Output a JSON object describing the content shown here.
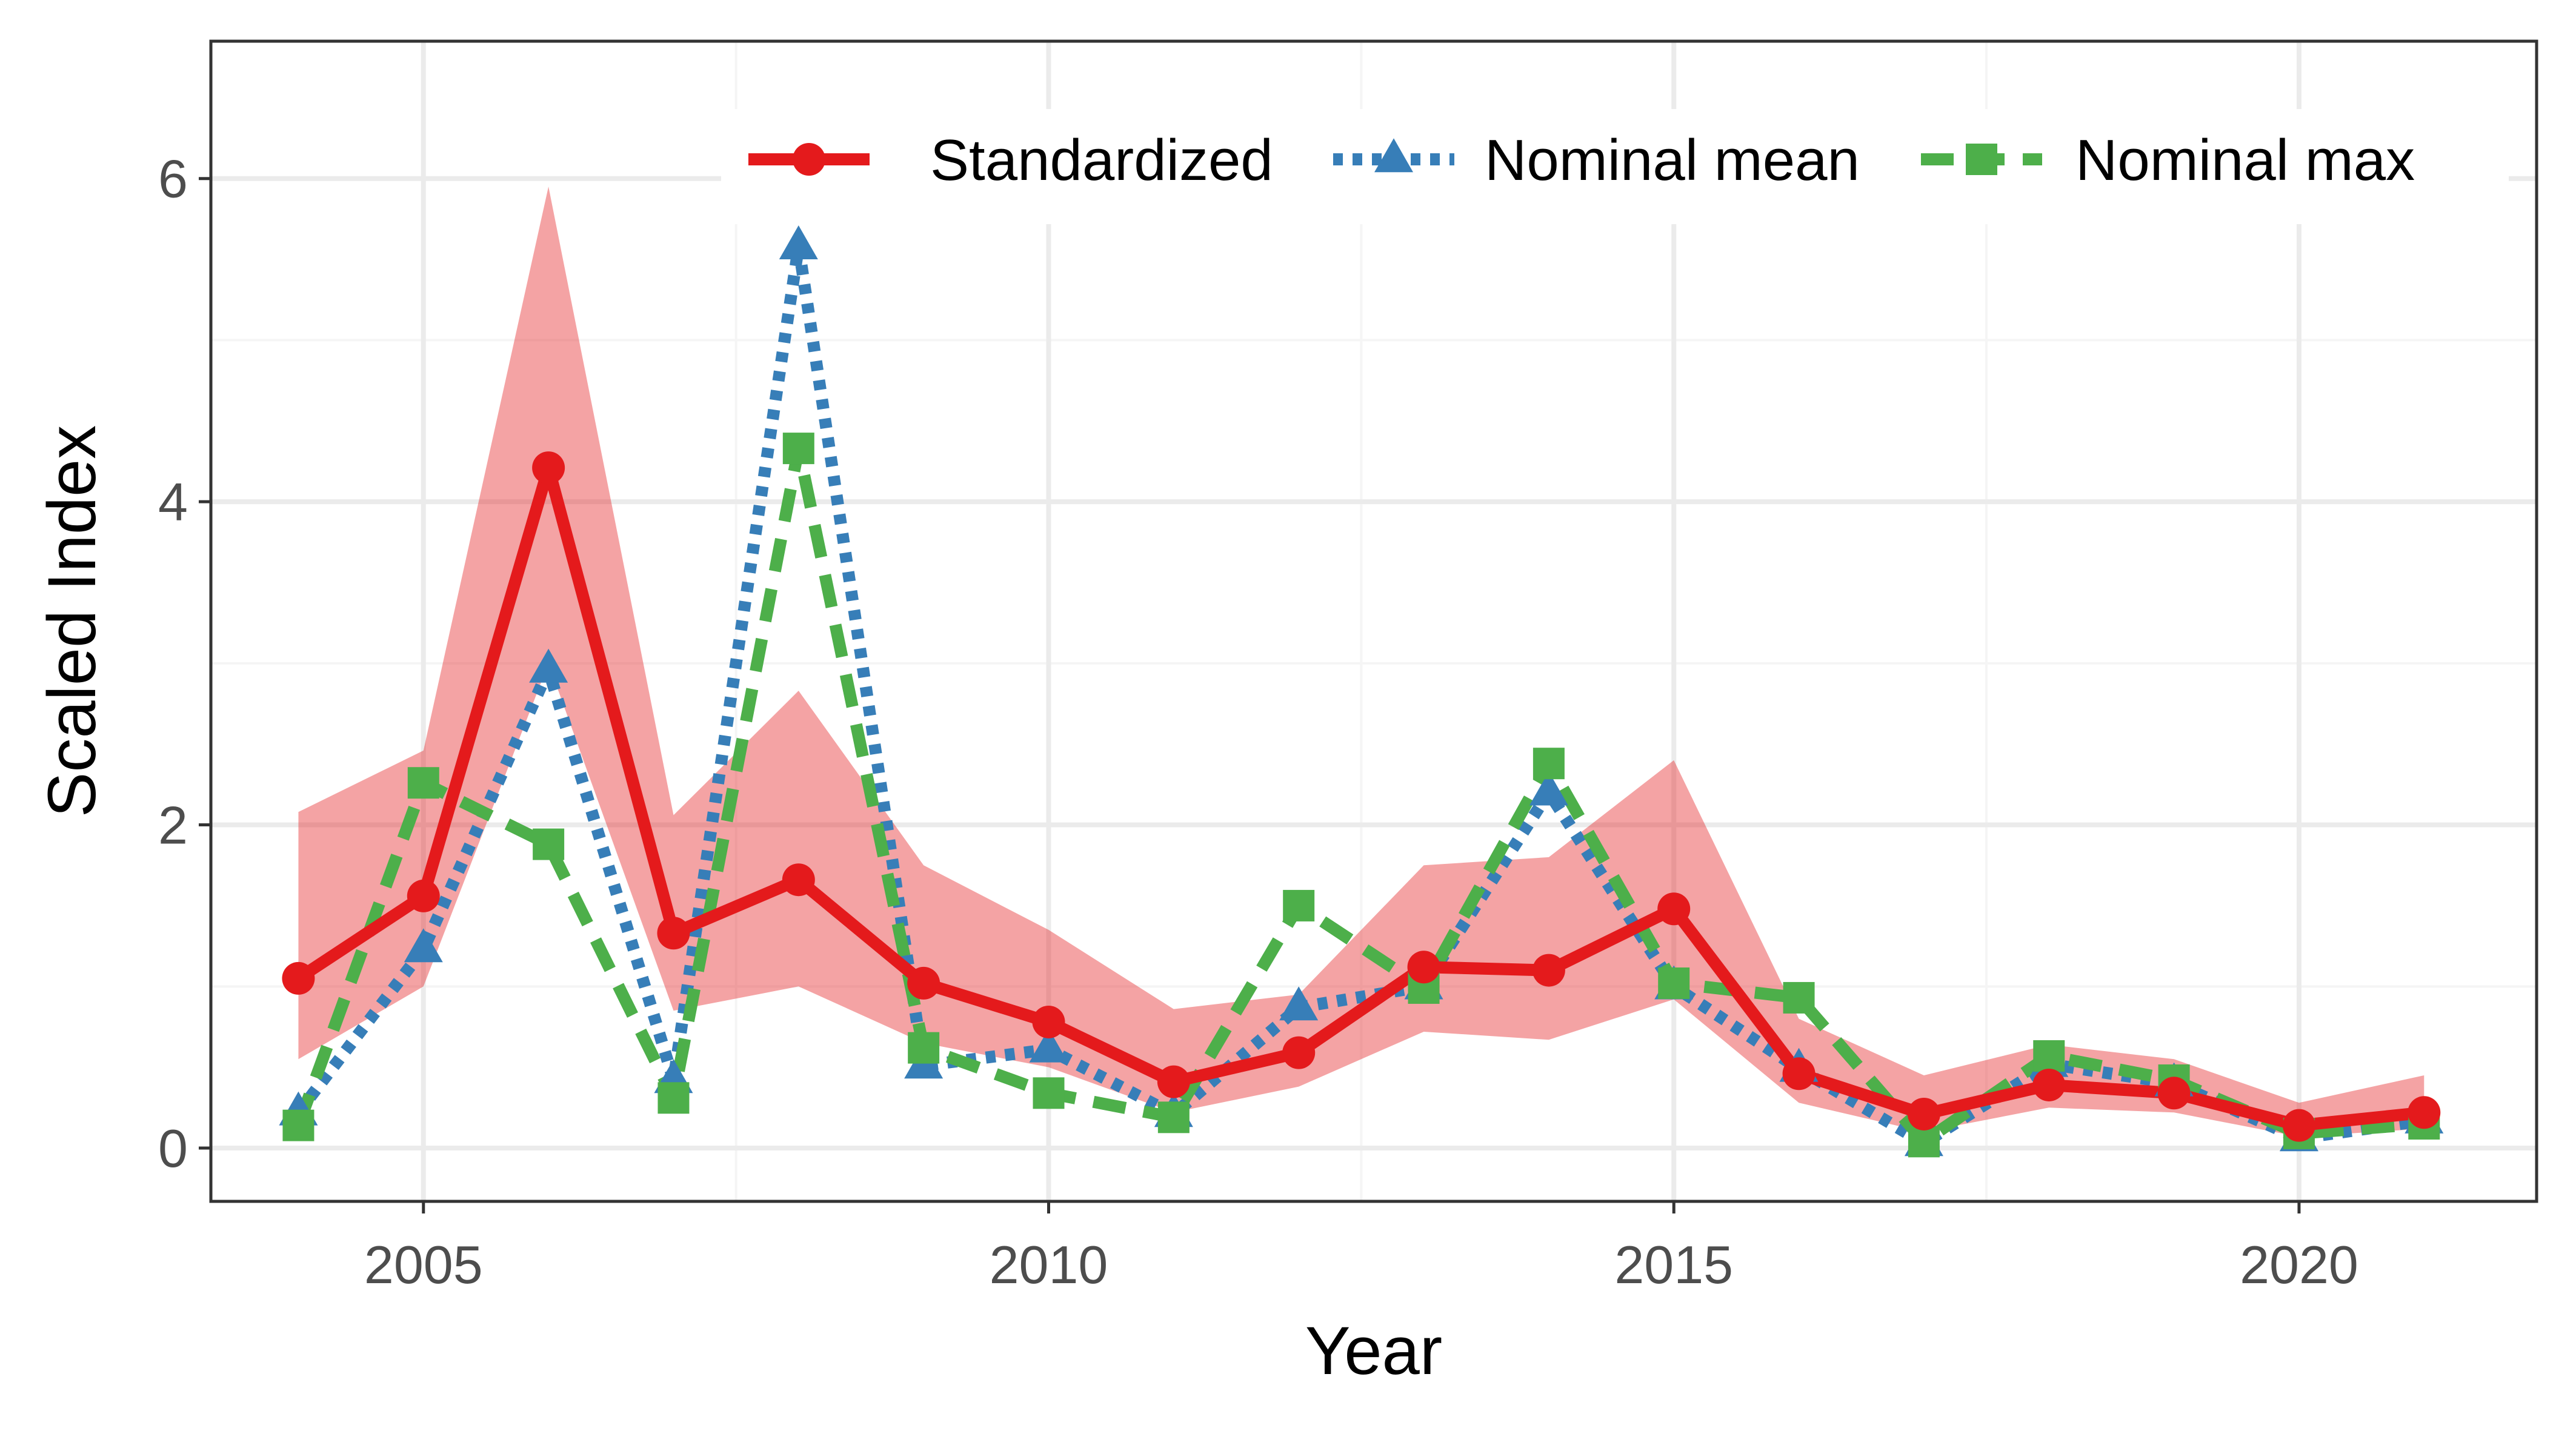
{
  "chart_data": {
    "type": "line",
    "title": "",
    "xlabel": "Year",
    "ylabel": "Scaled Index",
    "xlim": [
      2003.3,
      2021.9
    ],
    "ylim": [
      -0.33,
      6.85
    ],
    "x_ticks": [
      2005,
      2010,
      2015,
      2020
    ],
    "y_ticks": [
      0,
      2,
      4,
      6
    ],
    "x_minor_ticks": [
      2007.5,
      2012.5,
      2017.5
    ],
    "y_minor_ticks": [
      1,
      3,
      5
    ],
    "grid": true,
    "legend_position": "top-right",
    "x": [
      2004,
      2005,
      2006,
      2007,
      2008,
      2009,
      2010,
      2011,
      2012,
      2013,
      2014,
      2015,
      2016,
      2017,
      2018,
      2019,
      2020,
      2021
    ],
    "series": [
      {
        "name": "Standardized",
        "color": "#e41a1c",
        "style": "solid",
        "marker": "circle",
        "values": [
          1.05,
          1.56,
          4.21,
          1.33,
          1.66,
          1.02,
          0.78,
          0.41,
          0.59,
          1.12,
          1.1,
          1.48,
          0.46,
          0.21,
          0.39,
          0.34,
          0.14,
          0.22
        ],
        "ci_lower": [
          0.55,
          1.0,
          3.0,
          0.85,
          1.0,
          0.65,
          0.5,
          0.22,
          0.38,
          0.72,
          0.67,
          0.92,
          0.28,
          0.1,
          0.25,
          0.22,
          0.07,
          0.12
        ],
        "ci_upper": [
          2.08,
          2.46,
          5.95,
          2.06,
          2.83,
          1.75,
          1.35,
          0.86,
          0.95,
          1.75,
          1.8,
          2.4,
          0.8,
          0.45,
          0.64,
          0.55,
          0.28,
          0.45
        ]
      },
      {
        "name": "Nominal mean",
        "color": "#377eb8",
        "style": "dotted",
        "marker": "triangle",
        "values": [
          0.22,
          1.23,
          2.96,
          0.42,
          5.58,
          0.51,
          0.61,
          0.21,
          0.87,
          1.0,
          2.2,
          1.0,
          0.49,
          0.03,
          0.52,
          0.4,
          0.06,
          0.17
        ]
      },
      {
        "name": "Nominal max",
        "color": "#4daf4a",
        "style": "dashed",
        "marker": "square",
        "values": [
          0.14,
          2.26,
          1.88,
          0.31,
          4.33,
          0.62,
          0.34,
          0.19,
          1.5,
          0.99,
          2.38,
          1.02,
          0.93,
          0.04,
          0.57,
          0.42,
          0.09,
          0.15
        ]
      }
    ],
    "band": {
      "series": "Standardized",
      "color": "#e41a1c",
      "opacity": 0.4
    },
    "colors": {
      "panel_border": "#333333",
      "grid_major": "#ebebeb",
      "grid_minor": "#f5f5f5",
      "tick_label": "#4d4d4d",
      "axis_title": "#000000"
    }
  }
}
